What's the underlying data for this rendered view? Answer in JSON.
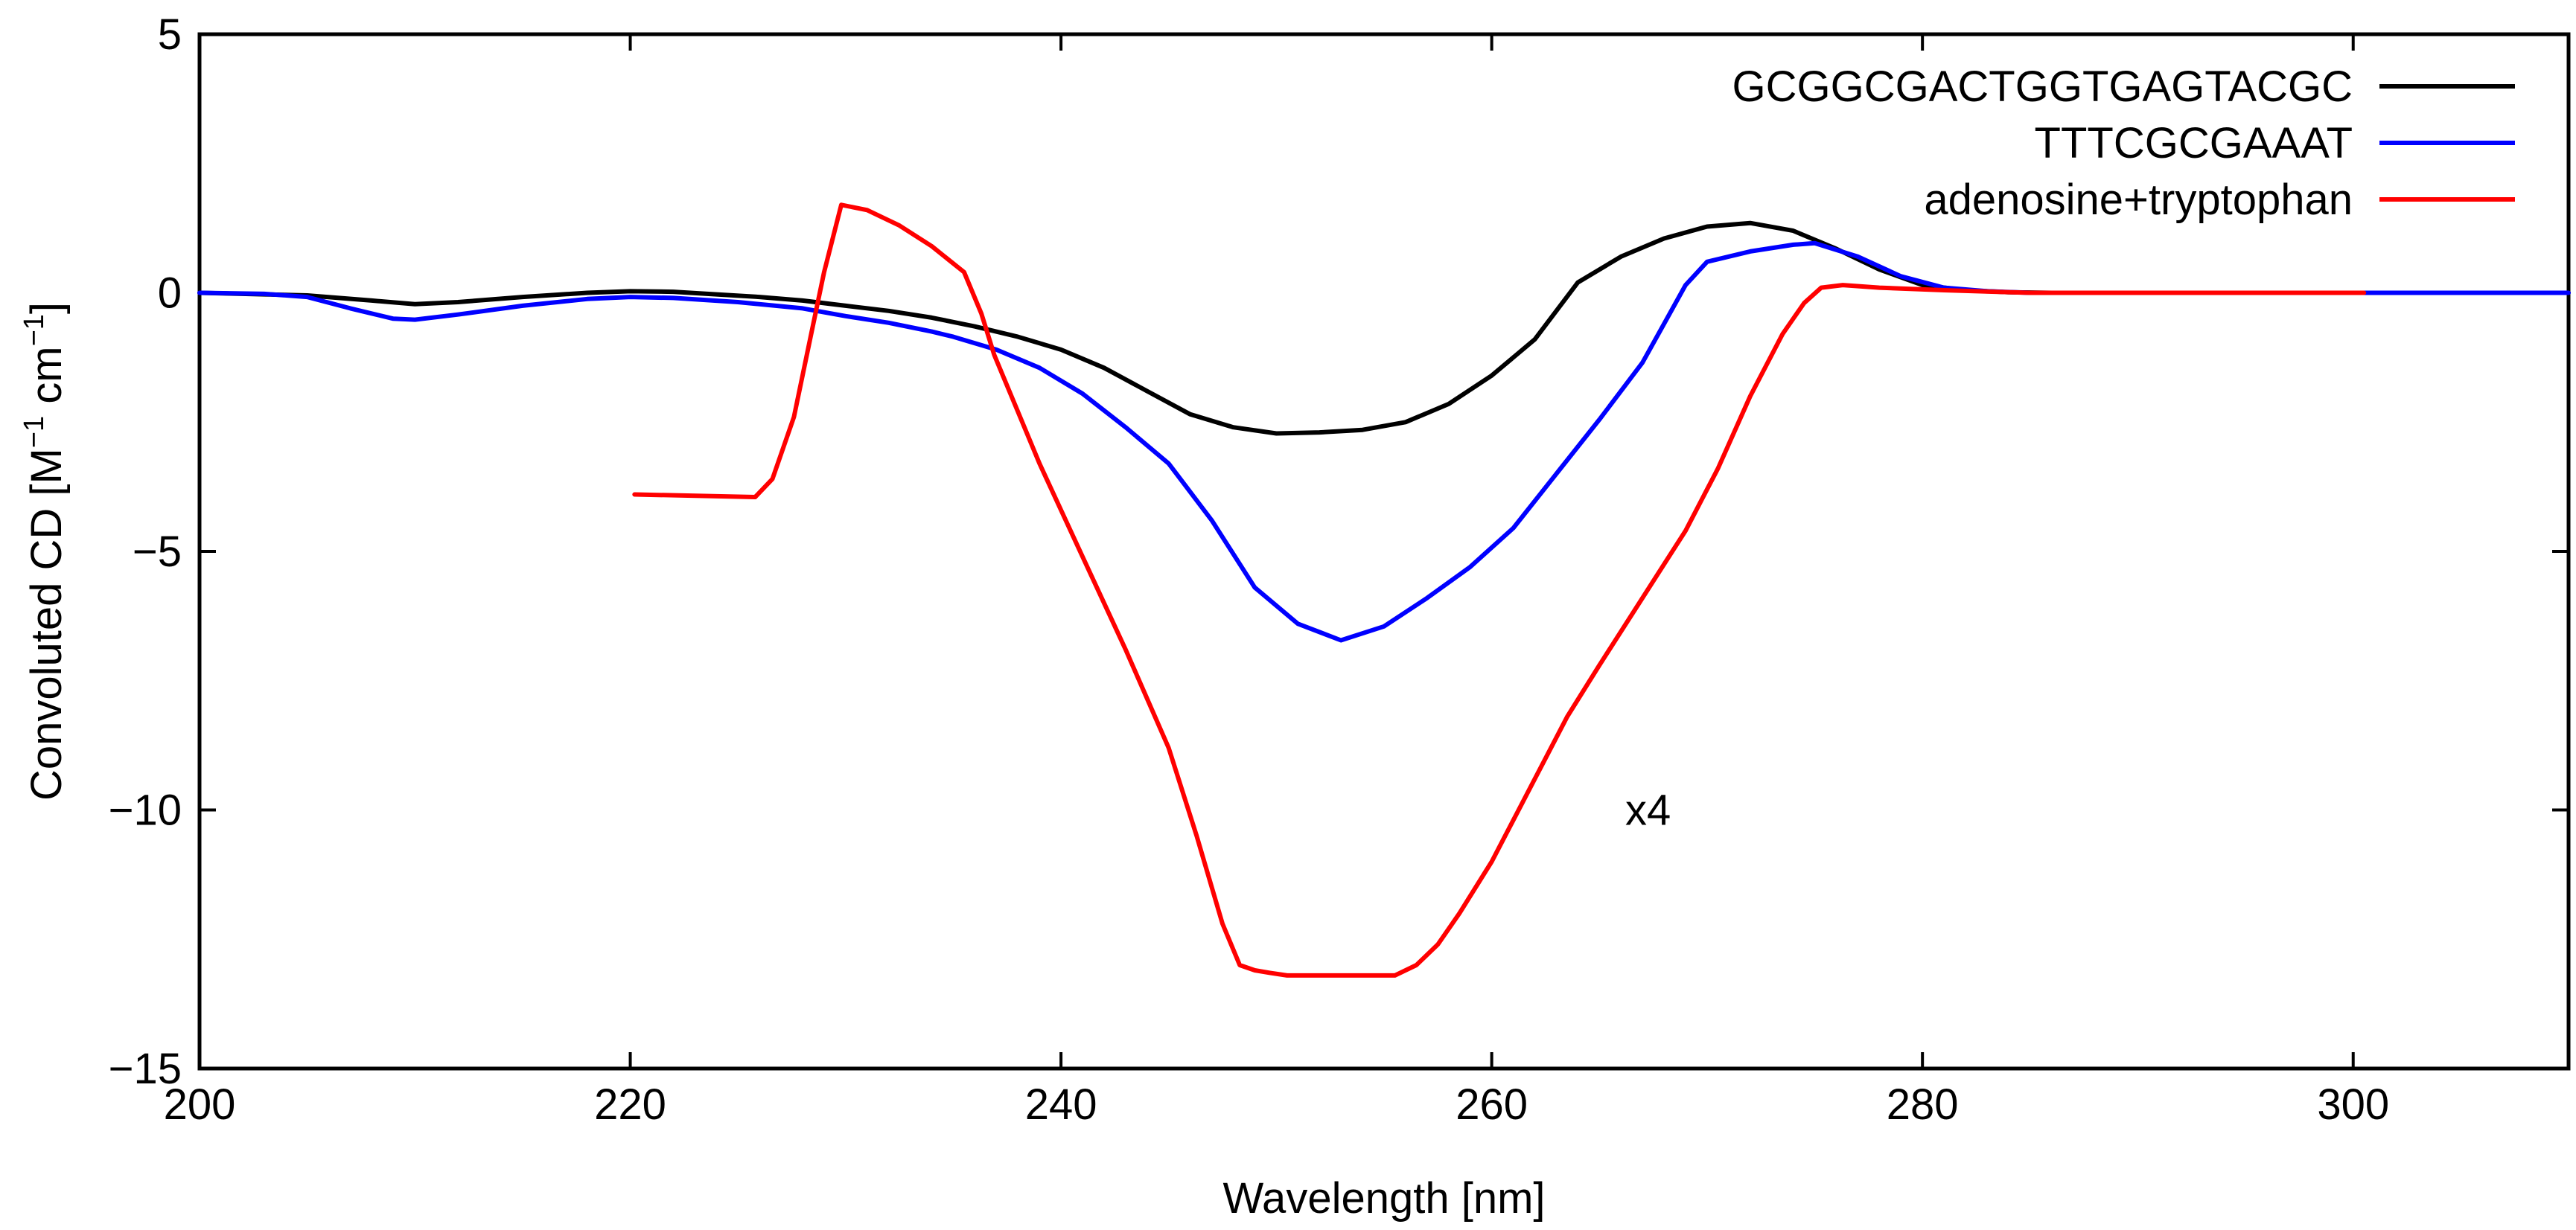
{
  "chart_data": {
    "type": "line",
    "title": "",
    "xlabel": "Wavelength [nm]",
    "ylabel": {
      "text": "Convoluted CD [M",
      "exp1": "−1",
      "mid": " cm",
      "exp2": "−1",
      "end": "]"
    },
    "xlim": [
      200,
      310
    ],
    "ylim": [
      -15,
      5
    ],
    "xticks": [
      200,
      220,
      240,
      260,
      280,
      300
    ],
    "yticks": [
      5,
      0,
      -5,
      -10,
      -15
    ],
    "xtick_labels": [
      "200",
      "220",
      "240",
      "260",
      "280",
      "300"
    ],
    "ytick_labels": [
      "5",
      "0",
      "−5",
      "−10",
      "−15"
    ],
    "grid": false,
    "legend_position": "top-right",
    "annotation": {
      "text": "x4",
      "x": 266.2,
      "y": -10
    },
    "series": [
      {
        "name": "GCGGCGACTGGTGAGTACGC",
        "color": "#000000",
        "x": [
          200,
          205,
          208,
          210,
          212,
          215,
          218,
          220,
          222,
          224,
          226,
          228,
          230,
          232,
          234,
          236,
          238,
          240,
          242,
          244,
          246,
          248,
          250,
          252,
          254,
          256,
          258,
          260,
          262,
          264,
          266,
          268,
          270,
          272,
          274,
          276,
          278,
          280,
          282,
          284,
          286,
          290,
          300,
          310
        ],
        "values": [
          0,
          -0.05,
          -0.15,
          -0.22,
          -0.18,
          -0.08,
          0,
          0.03,
          0.02,
          -0.03,
          -0.08,
          -0.15,
          -0.25,
          -0.35,
          -0.48,
          -0.65,
          -0.85,
          -1.1,
          -1.45,
          -1.9,
          -2.35,
          -2.6,
          -2.72,
          -2.7,
          -2.65,
          -2.5,
          -2.15,
          -1.6,
          -0.9,
          0.2,
          0.7,
          1.05,
          1.28,
          1.35,
          1.2,
          0.85,
          0.45,
          0.15,
          0.05,
          0.01,
          0,
          0,
          0,
          0
        ]
      },
      {
        "name": "TTTCGCGAAAT",
        "color": "#0000ff",
        "x": [
          200,
          203,
          205,
          207,
          209,
          210,
          212,
          215,
          218,
          220,
          222,
          225,
          228,
          230,
          232,
          234,
          235,
          237,
          239,
          241,
          243,
          245,
          247,
          249,
          251,
          253,
          255,
          257,
          259,
          261,
          263,
          265,
          267,
          268,
          269,
          270,
          272,
          274,
          275,
          277,
          279,
          281,
          283,
          285,
          290,
          300,
          310
        ],
        "values": [
          0,
          -0.02,
          -0.08,
          -0.3,
          -0.5,
          -0.52,
          -0.42,
          -0.25,
          -0.12,
          -0.08,
          -0.1,
          -0.18,
          -0.3,
          -0.45,
          -0.58,
          -0.75,
          -0.85,
          -1.1,
          -1.45,
          -1.95,
          -2.6,
          -3.3,
          -4.4,
          -5.7,
          -6.4,
          -6.72,
          -6.45,
          -5.9,
          -5.3,
          -4.55,
          -3.5,
          -2.45,
          -1.35,
          -0.6,
          0.15,
          0.6,
          0.8,
          0.93,
          0.96,
          0.7,
          0.32,
          0.1,
          0.03,
          0,
          0,
          0,
          0
        ]
      },
      {
        "name": "adenosine+tryptophan",
        "color": "#ff0000",
        "x": [
          220.2,
          225.8,
          226.6,
          227.6,
          228.4,
          229,
          229.8,
          231,
          232.5,
          234,
          235.5,
          236.3,
          236.9,
          237.8,
          239,
          241,
          243,
          245,
          246.3,
          247.5,
          248.3,
          249,
          249.7,
          250.5,
          255.5,
          256.5,
          257.5,
          258.5,
          260,
          262,
          263.5,
          265,
          267,
          269,
          270.5,
          272,
          273.5,
          274.5,
          275.3,
          276.3,
          278,
          281,
          285,
          300.5
        ],
        "values": [
          -3.9,
          -3.95,
          -3.6,
          -2.4,
          -0.8,
          0.4,
          1.7,
          1.6,
          1.3,
          0.9,
          0.4,
          -0.4,
          -1.2,
          -2.1,
          -3.3,
          -5.1,
          -6.9,
          -8.8,
          -10.5,
          -12.2,
          -13.0,
          -13.1,
          -13.15,
          -13.2,
          -13.2,
          -13.0,
          -12.6,
          -12.0,
          -11.0,
          -9.4,
          -8.2,
          -7.2,
          -5.9,
          -4.6,
          -3.4,
          -2.0,
          -0.8,
          -0.2,
          0.1,
          0.15,
          0.1,
          0.05,
          0,
          0
        ]
      }
    ]
  }
}
